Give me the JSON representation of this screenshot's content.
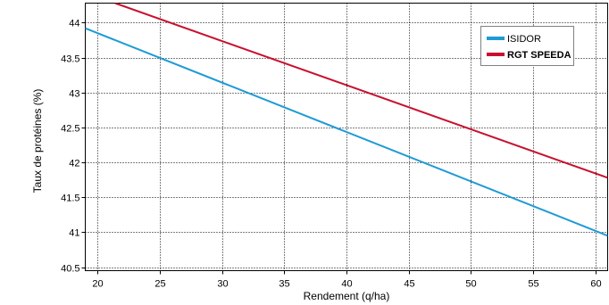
{
  "chart_data": {
    "type": "line",
    "title": "",
    "xlabel": "Rendement (q/ha)",
    "ylabel": "Taux de protéines (%)",
    "xlim": [
      19,
      61
    ],
    "ylim": [
      40.45,
      44.28
    ],
    "x_ticks": [
      20,
      25,
      30,
      35,
      40,
      45,
      50,
      55,
      60
    ],
    "y_ticks": [
      40.5,
      41,
      41.5,
      42,
      42.5,
      43,
      43.5,
      44
    ],
    "x_tick_labels": [
      "20",
      "25",
      "30",
      "35",
      "40",
      "45",
      "50",
      "55",
      "60"
    ],
    "y_tick_labels": [
      "40.5",
      "41",
      "41.5",
      "42",
      "42.5",
      "43",
      "43.5",
      "44"
    ],
    "grid": true,
    "legend_position": "top-right",
    "series": [
      {
        "name": "ISIDOR",
        "color": "#1e9ad6",
        "x": [
          19,
          61
        ],
        "y": [
          43.92,
          40.95
        ]
      },
      {
        "name": "RGT SPEEDA",
        "color": "#c8102e",
        "x": [
          21.4,
          61
        ],
        "y": [
          44.28,
          41.78
        ]
      }
    ]
  }
}
